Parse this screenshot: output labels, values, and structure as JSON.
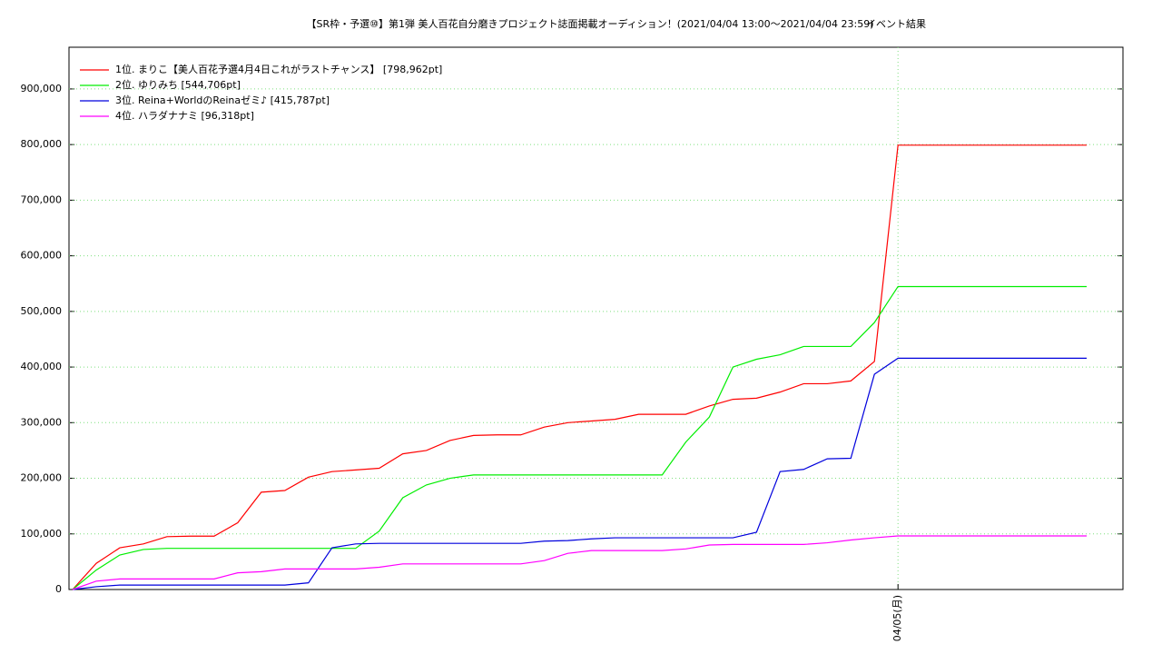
{
  "chart_data": {
    "type": "line",
    "title": "【SR枠・予選⑩】第1弾 美人百花自分磨きプロジェクト誌面掲載オーディション！(2021/04/04 13:00～2021/04/04 23:59)",
    "subtitle": "イベント結果",
    "categories": [
      null,
      null,
      null,
      null,
      null,
      null,
      null,
      null,
      null,
      null,
      null,
      null,
      null,
      null,
      null,
      null,
      null,
      null,
      null,
      null,
      null,
      null,
      null,
      null,
      null,
      null,
      null,
      null,
      null,
      null,
      null,
      null,
      null,
      null,
      null,
      "04/05(月)",
      null,
      null,
      null,
      null,
      null,
      null,
      null,
      null
    ],
    "series": [
      {
        "name": "1位. まりこ【美人百花予選4月4日これがラストチャンス】 [798,962pt]",
        "color": "#ff0000",
        "values": [
          0,
          47000,
          75000,
          82000,
          95000,
          96000,
          96000,
          120000,
          175000,
          178000,
          202000,
          212000,
          215000,
          218000,
          244000,
          250000,
          268000,
          277000,
          278000,
          278000,
          292000,
          300000,
          303000,
          306000,
          315000,
          315000,
          315000,
          330000,
          342000,
          344000,
          355000,
          370000,
          370000,
          375000,
          410000,
          798962,
          798962,
          798962,
          798962,
          798962,
          798962,
          798962,
          798962,
          798962
        ]
      },
      {
        "name": "2位. ゆりみち [544,706pt]",
        "color": "#00ee00",
        "values": [
          0,
          35000,
          62000,
          72000,
          74000,
          74000,
          74000,
          74000,
          74000,
          74000,
          74000,
          74000,
          74000,
          105000,
          165000,
          188000,
          200000,
          206000,
          206000,
          206000,
          206000,
          206000,
          206000,
          206000,
          206000,
          206000,
          265000,
          310000,
          400000,
          414000,
          422000,
          437000,
          437000,
          437000,
          480000,
          544706,
          544706,
          544706,
          544706,
          544706,
          544706,
          544706,
          544706,
          544706
        ]
      },
      {
        "name": "3位. Reina+WorldのReinaゼミ♪ [415,787pt]",
        "color": "#0000dd",
        "values": [
          0,
          5000,
          8000,
          8000,
          8000,
          8000,
          8000,
          8000,
          8000,
          8000,
          12000,
          75000,
          82000,
          83000,
          83000,
          83000,
          83000,
          83000,
          83000,
          83000,
          87000,
          88000,
          91000,
          93000,
          93000,
          93000,
          93000,
          93000,
          93000,
          103000,
          212000,
          216000,
          235000,
          236000,
          387000,
          415787,
          415787,
          415787,
          415787,
          415787,
          415787,
          415787,
          415787,
          415787
        ]
      },
      {
        "name": "4位. ハラダナナミ [96,318pt]",
        "color": "#ff00ff",
        "values": [
          0,
          15000,
          19000,
          19000,
          19000,
          19000,
          19000,
          30000,
          32000,
          37000,
          37000,
          37000,
          37000,
          40000,
          46000,
          46000,
          46000,
          46000,
          46000,
          46000,
          52000,
          65000,
          70000,
          70000,
          70000,
          70000,
          73000,
          80000,
          81000,
          81000,
          81000,
          81000,
          84000,
          89000,
          93000,
          96318,
          96318,
          96318,
          96318,
          96318,
          96318,
          96318,
          96318,
          96318
        ]
      }
    ],
    "ylim": [
      0,
      975000
    ],
    "yticks": [
      0,
      {
        "value": 100000,
        "label": "100,000"
      },
      {
        "value": 200000,
        "label": "200,000"
      },
      {
        "value": 300000,
        "label": "300,000"
      },
      {
        "value": 400000,
        "label": "400,000"
      },
      {
        "value": 500000,
        "label": "500,000"
      },
      {
        "value": 600000,
        "label": "600,000"
      },
      {
        "value": 700000,
        "label": "700,000"
      },
      {
        "value": 800000,
        "label": "800,000"
      },
      {
        "value": 900000,
        "label": "900,000"
      }
    ],
    "grid": true,
    "legend": "top-left"
  }
}
